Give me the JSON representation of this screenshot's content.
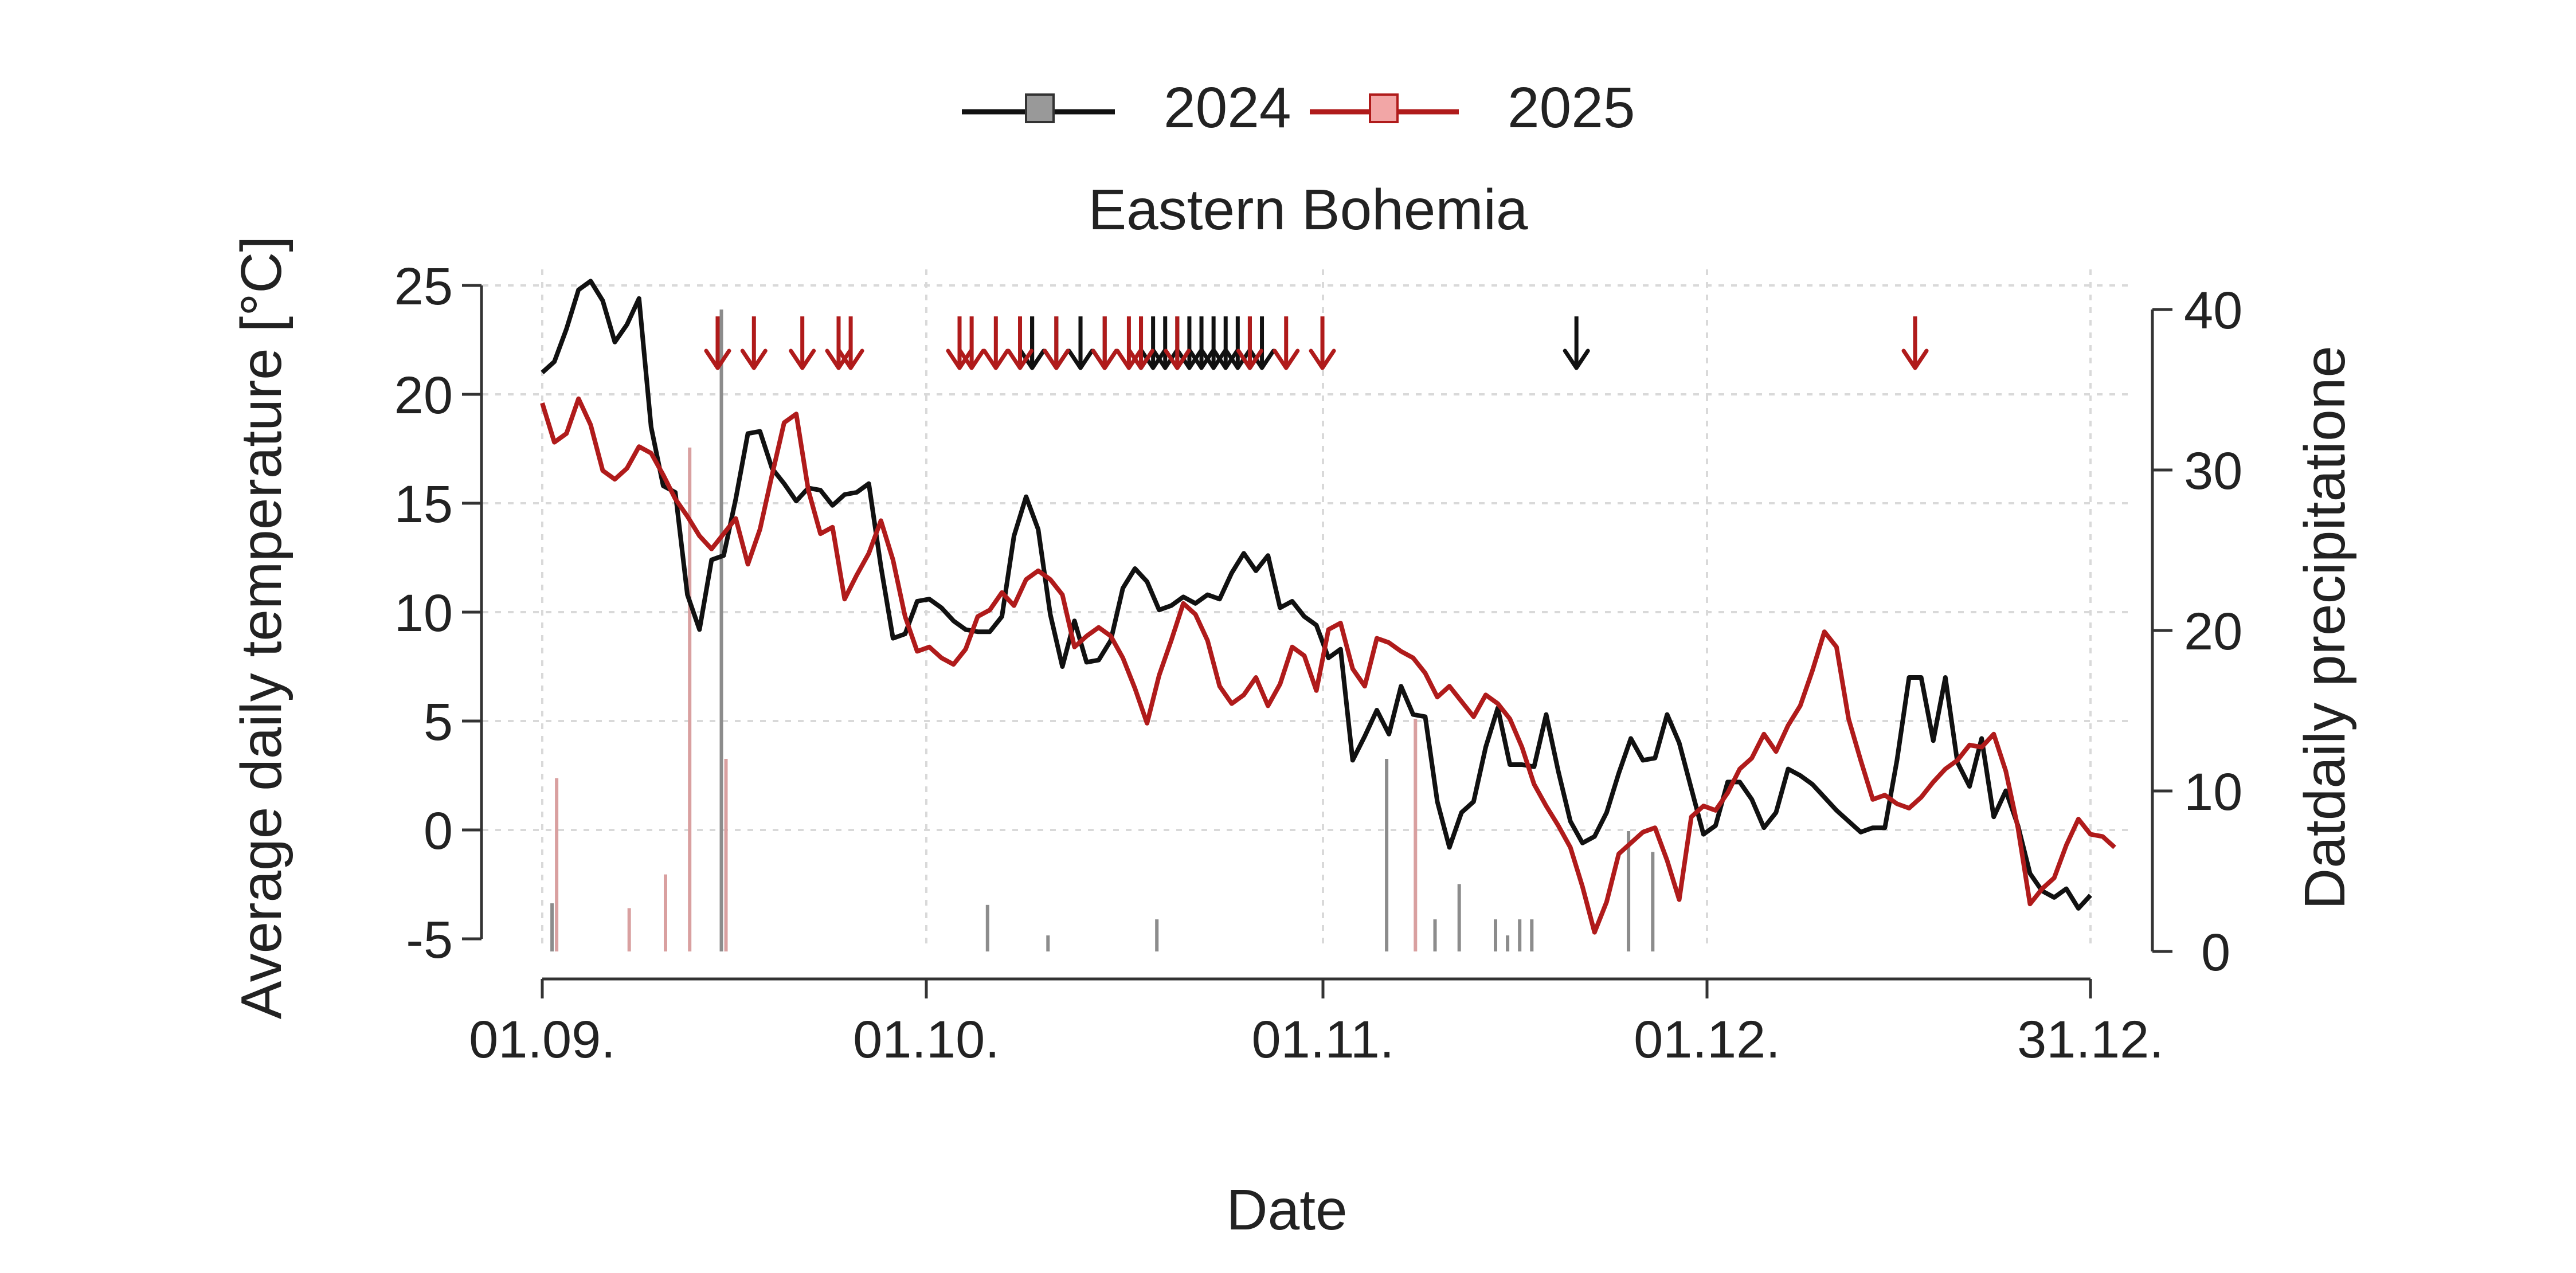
{
  "chart_data": {
    "type": "line",
    "title": "Eastern Bohemia",
    "xlabel": "Date",
    "ylabel_left": "Average daily temperature [°C]",
    "ylabel_right": "Datdaily precipitatione",
    "x_ticks": [
      "01.09.",
      "01.10.",
      "01.11.",
      "01.12.",
      "31.12."
    ],
    "y_ticks_left": [
      "25",
      "20",
      "15",
      "10",
      "5",
      "0",
      "-5"
    ],
    "y_ticks_right": [
      "40",
      "30",
      "20",
      "10",
      "0"
    ],
    "ylim_left": [
      -5,
      25
    ],
    "ylim_right": [
      0,
      40
    ],
    "grid": true,
    "legend_position": "top",
    "series": [
      {
        "name": "2024",
        "color": "#111111",
        "temperature": [
          21,
          21.5,
          23,
          24.8,
          25.2,
          24.3,
          22.4,
          23.2,
          24.4,
          18.5,
          15.8,
          15.5,
          10.8,
          9.2,
          12.4,
          12.6,
          15.2,
          18.2,
          18.3,
          16.6,
          15.9,
          15.1,
          15.7,
          15.6,
          14.9,
          15.4,
          15.5,
          15.9,
          12.1,
          8.8,
          9,
          10.5,
          10.6,
          10.2,
          9.6,
          9.2,
          9.1,
          9.1,
          9.8,
          13.5,
          15.3,
          13.8,
          9.9,
          7.5,
          9.6,
          7.7,
          7.8,
          8.7,
          11.1,
          12,
          11.4,
          10.1,
          10.3,
          10.7,
          10.4,
          10.8,
          10.6,
          11.8,
          12.7,
          11.9,
          12.6,
          10.2,
          10.5,
          9.8,
          9.4,
          7.9,
          8.3,
          3.2,
          4.3,
          5.5,
          4.4,
          6.6,
          5.3,
          5.2,
          1.3,
          -0.8,
          0.8,
          1.3,
          3.8,
          5.6,
          3,
          3,
          2.9,
          5.3,
          2.7,
          0.4,
          -0.6,
          -0.3,
          0.8,
          2.6,
          4.2,
          3.2,
          3.3,
          5.3,
          4,
          1.9,
          -0.2,
          0.2,
          2.2,
          2.2,
          1.4,
          0.1,
          0.8,
          2.8,
          2.5,
          2.1,
          1.5,
          0.9,
          0.4,
          -0.1,
          0.1,
          0.1,
          3.2,
          7,
          7,
          4.1,
          7,
          3.1,
          2,
          4.2,
          0.6,
          1.8,
          0.2,
          -2,
          -2.8,
          -3.1,
          -2.7,
          -3.6,
          -3
        ],
        "precipitation": [
          0,
          3,
          0,
          0,
          0,
          0,
          0,
          0,
          0,
          0,
          0,
          0,
          0,
          0,
          0,
          40,
          0,
          0,
          0,
          0,
          0,
          0,
          0,
          0,
          0,
          0,
          0,
          0,
          0,
          0,
          0,
          0,
          0,
          0,
          0,
          0,
          0,
          2.9,
          0,
          0,
          0,
          0,
          1,
          0,
          0,
          0,
          0,
          0,
          0,
          0,
          0,
          2,
          0,
          0,
          0,
          0,
          0,
          0,
          0,
          0,
          0,
          0,
          0,
          0,
          0,
          0,
          0,
          0,
          0,
          0,
          12,
          0,
          0,
          0,
          2,
          0,
          4.2,
          0,
          0,
          2,
          1,
          2,
          2,
          0,
          0,
          0,
          0,
          0,
          0,
          0,
          7.5,
          0,
          6.2,
          0,
          0,
          0,
          0,
          0,
          0,
          0,
          0,
          0,
          0,
          0,
          0,
          0,
          0,
          0,
          0,
          0,
          0,
          0,
          0,
          0,
          0,
          0,
          0,
          0,
          0,
          0,
          0,
          0,
          0,
          0,
          0,
          0,
          0,
          0,
          0,
          0,
          0,
          0,
          0,
          0
        ]
      },
      {
        "name": "2025",
        "color": "#b01b1b",
        "temperature": [
          19.6,
          17.8,
          18.2,
          19.8,
          18.6,
          16.5,
          16.1,
          16.6,
          17.6,
          17.3,
          16.3,
          15.2,
          14.4,
          13.5,
          12.9,
          13.6,
          14.3,
          12.2,
          13.8,
          16.3,
          18.7,
          19.1,
          15.6,
          13.6,
          13.9,
          10.6,
          11.7,
          12.7,
          14.2,
          12.4,
          9.8,
          8.2,
          8.4,
          7.9,
          7.6,
          8.3,
          9.8,
          10.1,
          10.9,
          10.3,
          11.5,
          11.9,
          11.5,
          10.8,
          8.4,
          8.9,
          9.3,
          8.9,
          7.9,
          6.5,
          4.9,
          7.1,
          8.7,
          10.4,
          9.9,
          8.7,
          6.6,
          5.8,
          6.2,
          7,
          5.7,
          6.7,
          8.4,
          8,
          6.4,
          9.2,
          9.5,
          7.4,
          6.6,
          8.8,
          8.6,
          8.2,
          7.9,
          7.2,
          6.1,
          6.6,
          5.9,
          5.2,
          6.2,
          5.8,
          5.1,
          3.8,
          2.1,
          1.1,
          0.2,
          -0.8,
          -2.6,
          -4.7,
          -3.3,
          -1.1,
          -0.6,
          -0.1,
          0.1,
          -1.4,
          -3.2,
          0.6,
          1.1,
          0.9,
          1.7,
          2.8,
          3.3,
          4.4,
          3.6,
          4.8,
          5.7,
          7.3,
          9.1,
          8.4,
          5.1,
          3.2,
          1.4,
          1.6,
          1.2,
          1,
          1.5,
          2.2,
          2.8,
          3.2,
          3.9,
          3.8,
          4.4,
          2.7,
          0.1,
          -3.4,
          -2.7,
          -2.2,
          -0.7,
          0.5,
          -0.2,
          -0.3,
          -0.8
        ],
        "precipitation": [
          0,
          10.8,
          0,
          0,
          0,
          0,
          0,
          2.7,
          0,
          0,
          4.8,
          0,
          31.4,
          0,
          0,
          12,
          0,
          0,
          0,
          0,
          0,
          0,
          0,
          0,
          0,
          0,
          0,
          0,
          0,
          0,
          0,
          0,
          0,
          0,
          0,
          0,
          0,
          0,
          0,
          0,
          0,
          0,
          0,
          0,
          0,
          0,
          0,
          0,
          0,
          0,
          0,
          0,
          0,
          0,
          0,
          0,
          0,
          0,
          0,
          0,
          0,
          0,
          0,
          0,
          0,
          0,
          0,
          0,
          0,
          0,
          0,
          0,
          14.5,
          0,
          0,
          0,
          0,
          0,
          0,
          0,
          0,
          0,
          0,
          0,
          0,
          0,
          0,
          0,
          0,
          0,
          0,
          0,
          0,
          0,
          0,
          0,
          0,
          0,
          0,
          0,
          0,
          0,
          0,
          0,
          0,
          0,
          0,
          0,
          0,
          0,
          0,
          0,
          0,
          0,
          0,
          0,
          0,
          0,
          0,
          0,
          0,
          0,
          0,
          0,
          0,
          0,
          0,
          0,
          0,
          0,
          0,
          0,
          0,
          0
        ]
      }
    ],
    "event_markers": {
      "2024": [
        40.5,
        40.5,
        42.5,
        44.5,
        44.5,
        46.5,
        49.5,
        50.5,
        51.5,
        52.5,
        53.5,
        54.5,
        55.5,
        56.5,
        57.5,
        58.5,
        59.5,
        85.5
      ],
      "2025": [
        14.5,
        17.5,
        21.5,
        24.5,
        25.5,
        34.5,
        35.5,
        37.5,
        39.5,
        42.5,
        46.5,
        48.5,
        49.5,
        52.5,
        58.5,
        61.5,
        64.5,
        113.5
      ]
    }
  }
}
